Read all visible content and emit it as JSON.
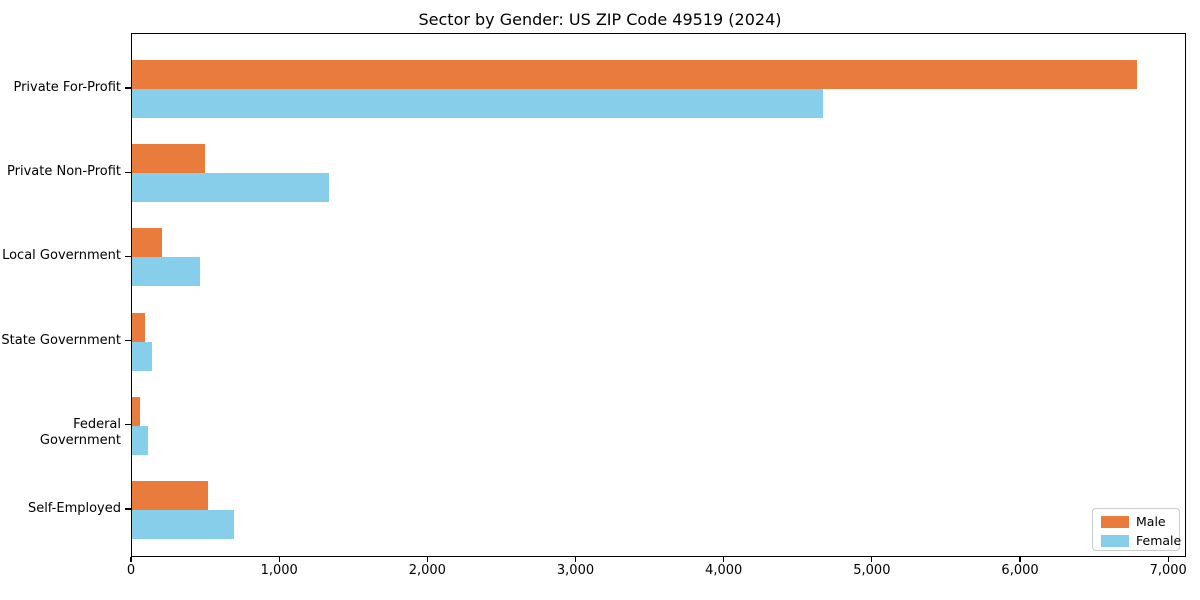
{
  "chart_data": {
    "type": "bar",
    "orientation": "horizontal",
    "title": "Sector by Gender: US ZIP Code 49519 (2024)",
    "categories": [
      "Private For-Profit",
      "Private Non-Profit",
      "Local Government",
      "State Government",
      "Federal Government",
      "Self-Employed"
    ],
    "series": [
      {
        "name": "Male",
        "color": "#E97C3C",
        "values": [
          6780,
          490,
          200,
          90,
          55,
          515
        ]
      },
      {
        "name": "Female",
        "color": "#87CEEB",
        "values": [
          4660,
          1330,
          460,
          135,
          110,
          690
        ]
      }
    ],
    "xlim": [
      0,
      7120
    ],
    "xticks": [
      0,
      1000,
      2000,
      3000,
      4000,
      5000,
      6000,
      7000
    ],
    "xtick_labels": [
      "0",
      "1,000",
      "2,000",
      "3,000",
      "4,000",
      "5,000",
      "6,000",
      "7,000"
    ],
    "xlabel": "",
    "ylabel": "",
    "grid": false,
    "legend": {
      "position": "lower-right",
      "entries": [
        {
          "label": "Male",
          "color": "#E97C3C"
        },
        {
          "label": "Female",
          "color": "#87CEEB"
        }
      ]
    },
    "colors": {
      "background": "#ffffff",
      "spine": "#000000"
    }
  }
}
